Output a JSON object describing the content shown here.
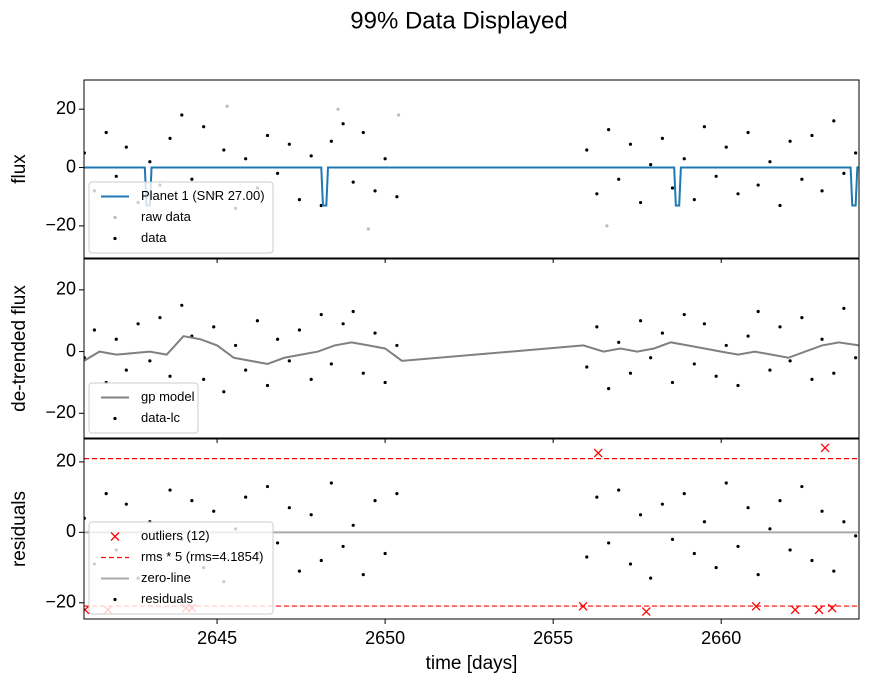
{
  "title": "99% Data Displayed",
  "chart_data": [
    {
      "type": "scatter",
      "ylabel": "flux",
      "xlim": [
        2641.04,
        2664.1
      ],
      "ylim": [
        -31,
        30
      ],
      "xticks": [
        2645,
        2650,
        2655,
        2660
      ],
      "xticklabels": false,
      "yticks": [
        {
          "value": -20,
          "label": "−20"
        },
        0,
        20
      ],
      "legend": "lower left",
      "series": [
        {
          "name": "Planet 1 (SNR 27.00)",
          "style": "line",
          "color": "#1f77b4",
          "x": [
            2641.04,
            2642.85,
            2642.9,
            2643.0,
            2643.05,
            2648.1,
            2648.15,
            2648.25,
            2648.3,
            2658.6,
            2658.65,
            2658.75,
            2658.8,
            2663.85,
            2663.9,
            2664.0,
            2664.05,
            2664.1
          ],
          "values": [
            0,
            0,
            -13,
            -13,
            0,
            0,
            -13,
            -13,
            0,
            0,
            -13,
            -13,
            0,
            0,
            -13,
            -13,
            0,
            0
          ]
        },
        {
          "name": "raw data",
          "style": "dots",
          "color": "#bbbbbb",
          "x": [
            2645.3,
            2648.6,
            2649.5,
            2650.4,
            2656.6
          ],
          "values": [
            21,
            20,
            -21,
            18,
            -20
          ]
        },
        {
          "name": "data",
          "style": "dots",
          "color": "#000000",
          "x": [
            2641.05,
            2641.35,
            2641.7,
            2642.0,
            2642.3,
            2642.65,
            2643.0,
            2643.3,
            2643.6,
            2643.95,
            2644.25,
            2644.6,
            2644.9,
            2645.2,
            2645.55,
            2645.85,
            2646.2,
            2646.5,
            2646.8,
            2647.15,
            2647.45,
            2647.8,
            2648.1,
            2648.4,
            2648.75,
            2649.05,
            2649.35,
            2649.7,
            2650.0,
            2650.35,
            2656.0,
            2656.3,
            2656.65,
            2656.95,
            2657.3,
            2657.6,
            2657.9,
            2658.25,
            2658.55,
            2658.9,
            2659.2,
            2659.5,
            2659.85,
            2660.15,
            2660.5,
            2660.8,
            2661.1,
            2661.45,
            2661.75,
            2662.05,
            2662.4,
            2662.7,
            2663.0,
            2663.35,
            2663.65,
            2664.0
          ],
          "values": [
            5,
            -8,
            12,
            -3,
            7,
            -12,
            2,
            -6,
            10,
            18,
            -4,
            14,
            -9,
            6,
            -14,
            3,
            -7,
            11,
            -2,
            8,
            -11,
            4,
            -13,
            9,
            15,
            -5,
            12,
            -8,
            3,
            -10,
            6,
            -9,
            13,
            -4,
            8,
            -12,
            1,
            10,
            -7,
            3,
            -11,
            14,
            -3,
            7,
            -9,
            12,
            -6,
            2,
            -13,
            9,
            -4,
            11,
            -8,
            16,
            -2,
            5
          ]
        }
      ]
    },
    {
      "type": "scatter",
      "ylabel": "de-trended flux",
      "xlim": [
        2641.04,
        2664.1
      ],
      "ylim": [
        -28,
        30
      ],
      "xticks": [
        2645,
        2650,
        2655,
        2660
      ],
      "xticklabels": false,
      "yticks": [
        {
          "value": -20,
          "label": "−20"
        },
        0,
        20
      ],
      "legend": "lower left",
      "series": [
        {
          "name": "gp model",
          "style": "line",
          "color": "#808080",
          "x": [
            2641.04,
            2641.5,
            2642,
            2642.5,
            2643,
            2643.5,
            2644,
            2644.5,
            2645,
            2645.5,
            2646,
            2646.5,
            2647,
            2647.5,
            2648,
            2648.5,
            2649,
            2649.5,
            2650,
            2650.5,
            2655.9,
            2656.5,
            2657,
            2657.5,
            2658,
            2658.5,
            2659,
            2659.5,
            2660,
            2660.5,
            2661,
            2661.5,
            2662,
            2662.5,
            2663,
            2663.5,
            2664.1
          ],
          "values": [
            -3,
            0,
            -1,
            -0.5,
            0,
            -1,
            5,
            4,
            2,
            -2,
            -3,
            -4,
            -2,
            -1,
            0,
            2,
            3,
            2,
            1,
            -3,
            2,
            0,
            1,
            0,
            1,
            3,
            2,
            1,
            0,
            -1,
            0,
            -1,
            -2,
            0,
            2,
            3,
            2
          ]
        },
        {
          "name": "data-lc",
          "style": "dots",
          "color": "#000000",
          "x": [
            2641.05,
            2641.35,
            2641.7,
            2642.0,
            2642.3,
            2642.65,
            2643.0,
            2643.3,
            2643.6,
            2643.95,
            2644.25,
            2644.6,
            2644.9,
            2645.2,
            2645.55,
            2645.85,
            2646.2,
            2646.5,
            2646.8,
            2647.15,
            2647.45,
            2647.8,
            2648.1,
            2648.4,
            2648.75,
            2649.05,
            2649.35,
            2649.7,
            2650.0,
            2650.35,
            2656.0,
            2656.3,
            2656.65,
            2656.95,
            2657.3,
            2657.6,
            2657.9,
            2658.25,
            2658.55,
            2658.9,
            2659.2,
            2659.5,
            2659.85,
            2660.15,
            2660.5,
            2660.8,
            2661.1,
            2661.45,
            2661.75,
            2662.05,
            2662.4,
            2662.7,
            2663.0,
            2663.35,
            2663.65,
            2664.0
          ],
          "values": [
            -2,
            7,
            -10,
            4,
            -6,
            9,
            -3,
            11,
            -8,
            15,
            5,
            -9,
            8,
            -13,
            2,
            -6,
            10,
            -11,
            4,
            -3,
            7,
            -9,
            12,
            -4,
            9,
            13,
            -7,
            6,
            -10,
            2,
            -5,
            8,
            -12,
            3,
            -7,
            10,
            -2,
            6,
            -10,
            12,
            -4,
            9,
            -8,
            2,
            -11,
            5,
            13,
            -6,
            8,
            -3,
            11,
            -9,
            4,
            -7,
            14,
            -2
          ]
        }
      ]
    },
    {
      "type": "scatter",
      "ylabel": "residuals",
      "xlabel": "time [days]",
      "xlim": [
        2641.04,
        2664.1
      ],
      "ylim": [
        -24.6,
        26.5
      ],
      "xticks": [
        2645,
        2650,
        2655,
        2660
      ],
      "xticklabels": true,
      "yticks": [
        {
          "value": -20,
          "label": "−20"
        },
        0,
        20
      ],
      "legend": "lower left",
      "series": [
        {
          "name": "outliers (12)",
          "style": "cross",
          "color": "#ff0000",
          "x": [
            2641.07,
            2641.75,
            2644.08,
            2644.25,
            2655.89,
            2656.34,
            2657.77,
            2661.04,
            2662.2,
            2662.91,
            2663.09,
            2663.3
          ],
          "values": [
            -22,
            -22,
            -21.5,
            -21.5,
            -21,
            22.5,
            -22.5,
            -21,
            -22,
            -22,
            24,
            -21.5
          ]
        },
        {
          "name": "rms * 5 (rms=4.1854)",
          "style": "hline",
          "color": "#ff0000",
          "levels": [
            20.927,
            -20.927
          ]
        },
        {
          "name": "zero-line",
          "style": "line",
          "color": "#aaaaaa",
          "x": [
            2641.04,
            2664.1
          ],
          "values": [
            0,
            0
          ]
        },
        {
          "name": "residuals",
          "style": "dots",
          "color": "#000000",
          "x": [
            2641.05,
            2641.35,
            2641.7,
            2642.0,
            2642.3,
            2642.65,
            2643.0,
            2643.3,
            2643.6,
            2643.95,
            2644.25,
            2644.6,
            2644.9,
            2645.2,
            2645.55,
            2645.85,
            2646.2,
            2646.5,
            2646.8,
            2647.15,
            2647.45,
            2647.8,
            2648.1,
            2648.4,
            2648.75,
            2649.05,
            2649.35,
            2649.7,
            2650.0,
            2650.35,
            2656.0,
            2656.3,
            2656.65,
            2656.95,
            2657.3,
            2657.6,
            2657.9,
            2658.25,
            2658.55,
            2658.9,
            2659.2,
            2659.5,
            2659.85,
            2660.15,
            2660.5,
            2660.8,
            2661.1,
            2661.45,
            2661.75,
            2662.05,
            2662.4,
            2662.7,
            2663.0,
            2663.35,
            2663.65,
            2664.0
          ],
          "values": [
            4,
            -9,
            11,
            -5,
            8,
            -13,
            3,
            -7,
            12,
            -2,
            9,
            -10,
            6,
            -14,
            1,
            10,
            -6,
            13,
            -3,
            7,
            -11,
            5,
            -8,
            14,
            -4,
            2,
            -12,
            9,
            -6,
            11,
            -7,
            10,
            -3,
            12,
            -9,
            5,
            -13,
            8,
            -2,
            11,
            -6,
            3,
            -10,
            14,
            -4,
            7,
            -12,
            1,
            9,
            -5,
            13,
            -8,
            6,
            -11,
            3,
            -1
          ]
        }
      ]
    }
  ]
}
